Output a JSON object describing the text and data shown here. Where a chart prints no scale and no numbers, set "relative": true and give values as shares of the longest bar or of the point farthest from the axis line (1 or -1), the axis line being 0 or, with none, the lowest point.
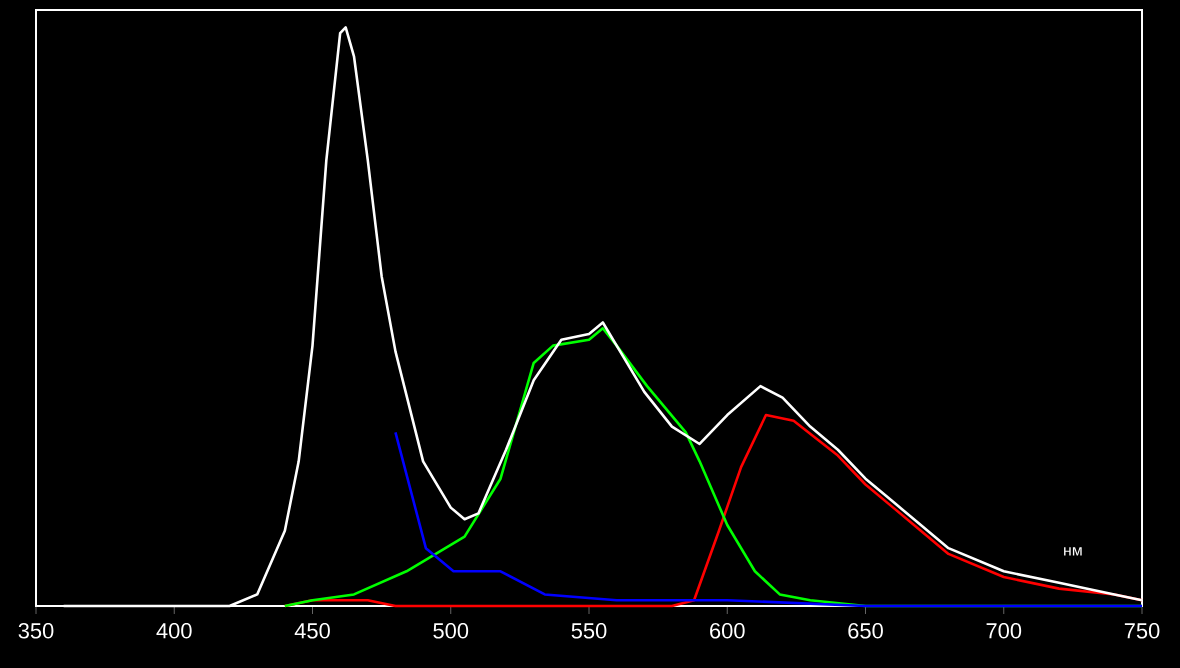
{
  "chart_data": {
    "type": "line",
    "relative": true,
    "xlabel": "нм",
    "xlim": [
      350,
      750
    ],
    "xticks": [
      350,
      400,
      450,
      500,
      550,
      600,
      650,
      700,
      750
    ],
    "marker": "none",
    "line_style": "solid",
    "grid": false,
    "series": [
      {
        "color": "#ff0000",
        "x": [
          440,
          450,
          460,
          470,
          480,
          490,
          580,
          588,
          597,
          605,
          614,
          624,
          640,
          650,
          660,
          670,
          680,
          700,
          720,
          740,
          750
        ],
        "values": [
          0,
          0.01,
          0.01,
          0.01,
          0,
          0,
          0,
          0.01,
          0.13,
          0.24,
          0.33,
          0.32,
          0.26,
          0.21,
          0.17,
          0.13,
          0.09,
          0.05,
          0.03,
          0.02,
          0.01
        ]
      },
      {
        "color": "#00ff00",
        "x": [
          440,
          450,
          465,
          484,
          505,
          518,
          530,
          537,
          550,
          555,
          560,
          571,
          585,
          590,
          600,
          610,
          619,
          630,
          650,
          750
        ],
        "values": [
          0,
          0.01,
          0.02,
          0.06,
          0.12,
          0.22,
          0.42,
          0.45,
          0.46,
          0.48,
          0.45,
          0.38,
          0.3,
          0.25,
          0.14,
          0.06,
          0.02,
          0.01,
          0,
          0
        ]
      },
      {
        "color": "#0000ff",
        "x": [
          480,
          491,
          501,
          518,
          534,
          560,
          600,
          650,
          750
        ],
        "values": [
          0.3,
          0.1,
          0.06,
          0.06,
          0.02,
          0.01,
          0.01,
          0,
          0
        ]
      },
      {
        "color": "#ffffff",
        "x": [
          360,
          420,
          430,
          440,
          445,
          450,
          455,
          460,
          462,
          465,
          470,
          475,
          480,
          490,
          500,
          505,
          510,
          520,
          530,
          540,
          550,
          555,
          560,
          570,
          580,
          590,
          600,
          612,
          620,
          630,
          640,
          650,
          660,
          670,
          680,
          700,
          720,
          740,
          750
        ],
        "values": [
          0,
          0,
          0.02,
          0.13,
          0.25,
          0.45,
          0.77,
          0.99,
          1,
          0.95,
          0.77,
          0.57,
          0.44,
          0.25,
          0.17,
          0.15,
          0.16,
          0.27,
          0.39,
          0.46,
          0.47,
          0.49,
          0.45,
          0.37,
          0.31,
          0.28,
          0.33,
          0.38,
          0.36,
          0.31,
          0.27,
          0.22,
          0.18,
          0.14,
          0.1,
          0.06,
          0.04,
          0.02,
          0.01
        ]
      }
    ]
  }
}
